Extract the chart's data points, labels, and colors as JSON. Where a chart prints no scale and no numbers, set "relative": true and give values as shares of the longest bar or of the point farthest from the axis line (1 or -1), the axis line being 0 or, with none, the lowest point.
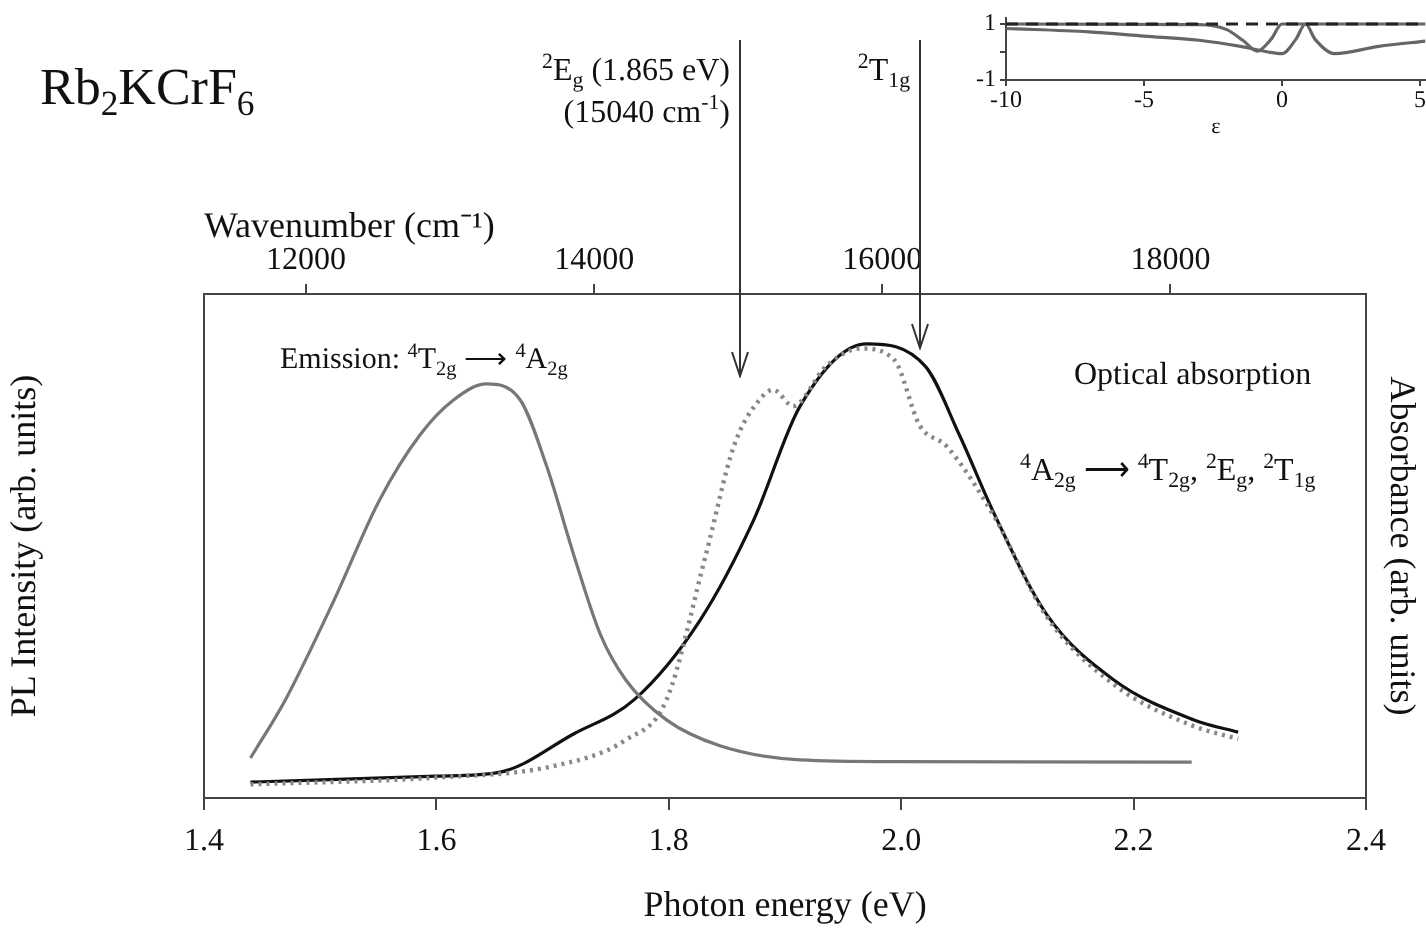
{
  "chart_data": [
    {
      "type": "line",
      "title": "Rb$_{2}$KCrF$_{6}$",
      "xlabel": "Photon energy (eV)",
      "x2label": "Wavenumber (cm⁻¹)",
      "ylabel": "PL Intensity (arb. units)",
      "y2label": "Absorbance (arb. units)",
      "relative": true,
      "xlim": [
        1.4,
        2.4
      ],
      "xticks": [
        1.4,
        1.6,
        1.8,
        {
          "value": 2,
          "label": "2.0"
        },
        2.2,
        2.4
      ],
      "x2lim": [
        11291.7,
        19357.2
      ],
      "x2ticks": [
        12000,
        14000,
        16000,
        18000
      ],
      "grid": false,
      "legend": false,
      "marker": "none",
      "series": [
        {
          "color": "#777777",
          "line_style": "solid",
          "x": [
            1.44,
            1.47,
            1.512,
            1.551,
            1.586,
            1.615,
            1.643,
            1.672,
            1.695,
            1.718,
            1.741,
            1.763,
            1.798,
            1.844,
            1.913,
            2.0,
            2.25
          ],
          "values": [
            0.088,
            0.216,
            0.436,
            0.656,
            0.8,
            0.877,
            0.912,
            0.877,
            0.73,
            0.537,
            0.361,
            0.26,
            0.172,
            0.115,
            0.084,
            0.08,
            0.079
          ]
        },
        {
          "color": "#888888",
          "line_style": "dotted",
          "x": [
            1.44,
            1.6,
            1.7,
            1.763,
            1.798,
            1.832,
            1.856,
            1.878,
            1.89,
            1.907,
            1.935,
            1.965,
            1.994,
            2.016,
            2.039,
            2.08,
            2.125,
            2.183,
            2.25,
            2.29
          ],
          "values": [
            0.03,
            0.045,
            0.07,
            0.128,
            0.216,
            0.537,
            0.775,
            0.877,
            0.899,
            0.863,
            0.95,
            0.99,
            0.965,
            0.82,
            0.775,
            0.62,
            0.4,
            0.25,
            0.16,
            0.13
          ]
        },
        {
          "color": "#111111",
          "line_style": "solid",
          "x": [
            1.44,
            1.6,
            1.655,
            1.718,
            1.77,
            1.827,
            1.873,
            1.913,
            1.97,
            2.021,
            2.05,
            2.08,
            2.125,
            2.183,
            2.252,
            2.29
          ],
          "values": [
            0.035,
            0.048,
            0.057,
            0.141,
            0.216,
            0.392,
            0.612,
            0.863,
            1.0,
            0.95,
            0.8,
            0.626,
            0.405,
            0.26,
            0.172,
            0.145
          ]
        }
      ],
      "annotations": [
        "$^{2}$E$_{g}$ (1.865 eV)\n(15040 cm$^{-1}$)",
        "$^{2}$T$_{1g}$",
        "Emission: $^{4}$T$_{2g}$ ⟶ $^{4}$A$_{2g}$",
        "Optical absorption",
        "$^{4}$A$_{2g}$ ⟶ $^{4}$T$_{2g}$, $^{2}$E$_{g}$, $^{2}$T$_{1g}$"
      ]
    },
    {
      "type": "line",
      "xlim": [
        -10,
        5.2
      ],
      "xticks": [
        -10,
        -5,
        0,
        5
      ],
      "ylim": [
        -1,
        1.2
      ],
      "yticks": [
        -1,
        {
          "value": 0,
          "label": null
        },
        1
      ],
      "xlabel": "ε",
      "grid": false,
      "legend": false,
      "marker": "none",
      "series": [
        {
          "color": "#222222",
          "line_style": "dashed",
          "x": [
            -10,
            5.2
          ],
          "values": [
            1,
            1
          ]
        },
        {
          "color": "#666666",
          "line_style": "solid",
          "x": [
            -10,
            -7,
            -5,
            -3,
            -1.5,
            -0.5,
            0,
            0.5,
            0.85,
            1.2,
            1.9,
            3.5,
            5.2
          ],
          "values": [
            0.84,
            0.72,
            0.57,
            0.42,
            0.2,
            0.0,
            -0.06,
            0.45,
            1.0,
            0.45,
            -0.06,
            0.2,
            0.39
          ]
        },
        {
          "color": "#666666",
          "line_style": "solid",
          "x": [
            -10,
            -3,
            -2,
            -1.4,
            -0.9,
            -0.4,
            0,
            5.2
          ],
          "values": [
            1,
            0.98,
            0.8,
            0.4,
            0.03,
            0.45,
            1.0,
            1.0
          ]
        }
      ]
    }
  ]
}
